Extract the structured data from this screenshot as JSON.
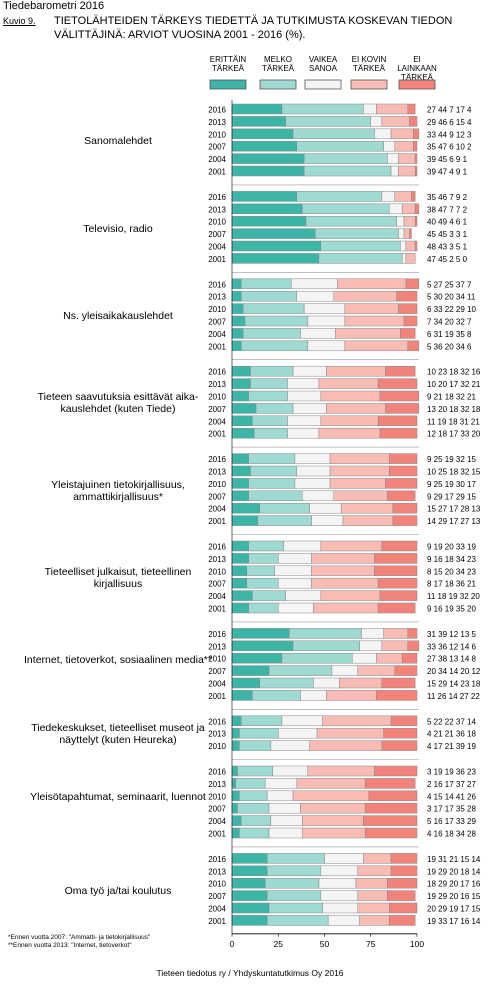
{
  "header": {
    "top_title": "Tiedebarometri 2016",
    "figure_label": "Kuvio 9.",
    "title": "TIETOLÄHTEIDEN TÄRKEYS TIEDETTÄ JA TUTKIMUSTA KOSKEVAN TIEDON VÄLITTÄJINÄ: ARVIOT VUOSINA 2001 - 2016 (%)."
  },
  "footnotes": [
    "*Ennen vuotta 2007: \"Ammatti- ja tietokirjallisuus\"",
    "**Ennen vuotta 2013: \"Internet, tietoverkot\""
  ],
  "source": "Tieteen tiedotus ry / Yhdyskuntatutkimus Oy 2016",
  "chart_data": {
    "type": "bar",
    "stacked": true,
    "orientation": "horizontal",
    "xlim": [
      0,
      100
    ],
    "x_ticks": [
      "0",
      "25",
      "50",
      "75",
      "100"
    ],
    "series": [
      {
        "name": "ERITTÄIN TÄRKEÄ",
        "color": "#3db5a6"
      },
      {
        "name": "MELKO TÄRKEÄ",
        "color": "#9ed9d2"
      },
      {
        "name": "VAIKEA SANOA",
        "color": "#f4f4f4"
      },
      {
        "name": "EI KOVIN TÄRKEÄ",
        "color": "#f9bcb4"
      },
      {
        "name": "EI LAINKAAN TÄRKEÄ",
        "color": "#f2837b"
      }
    ],
    "groups": [
      {
        "label": "Sanomalehdet",
        "rows": [
          {
            "year": "2016",
            "values": [
              27,
              44,
              7,
              17,
              4
            ]
          },
          {
            "year": "2013",
            "values": [
              29,
              46,
              6,
              15,
              4
            ]
          },
          {
            "year": "2010",
            "values": [
              33,
              44,
              9,
              12,
              3
            ]
          },
          {
            "year": "2007",
            "values": [
              35,
              47,
              6,
              10,
              2
            ]
          },
          {
            "year": "2004",
            "values": [
              39,
              45,
              6,
              9,
              1
            ]
          },
          {
            "year": "2001",
            "values": [
              39,
              47,
              4,
              9,
              1
            ]
          }
        ]
      },
      {
        "label": "Televisio, radio",
        "rows": [
          {
            "year": "2016",
            "values": [
              35,
              46,
              7,
              9,
              2
            ]
          },
          {
            "year": "2013",
            "values": [
              38,
              47,
              7,
              7,
              2
            ]
          },
          {
            "year": "2010",
            "values": [
              40,
              49,
              4,
              6,
              1
            ]
          },
          {
            "year": "2007",
            "values": [
              45,
              45,
              3,
              3,
              1
            ]
          },
          {
            "year": "2004",
            "values": [
              48,
              43,
              3,
              5,
              1
            ]
          },
          {
            "year": "2001",
            "values": [
              47,
              45,
              2,
              5,
              0
            ]
          }
        ]
      },
      {
        "label": "Ns. yleisaikakauslehdet",
        "rows": [
          {
            "year": "2016",
            "values": [
              5,
              27,
              25,
              37,
              7
            ]
          },
          {
            "year": "2013",
            "values": [
              5,
              30,
              20,
              34,
              11
            ]
          },
          {
            "year": "2010",
            "values": [
              6,
              33,
              22,
              29,
              10
            ]
          },
          {
            "year": "2007",
            "values": [
              7,
              34,
              20,
              32,
              7
            ]
          },
          {
            "year": "2004",
            "values": [
              6,
              31,
              19,
              35,
              8
            ]
          },
          {
            "year": "2001",
            "values": [
              5,
              36,
              20,
              34,
              6
            ]
          }
        ]
      },
      {
        "label": "Tieteen saavutuksia esittävät aika-kauslehdet (kuten Tiede)",
        "rows": [
          {
            "year": "2016",
            "values": [
              10,
              23,
              18,
              32,
              16
            ]
          },
          {
            "year": "2013",
            "values": [
              10,
              20,
              17,
              32,
              21
            ]
          },
          {
            "year": "2010",
            "values": [
              9,
              21,
              18,
              32,
              21
            ]
          },
          {
            "year": "2007",
            "values": [
              13,
              20,
              18,
              32,
              18
            ]
          },
          {
            "year": "2004",
            "values": [
              11,
              19,
              18,
              31,
              21
            ]
          },
          {
            "year": "2001",
            "values": [
              12,
              18,
              17,
              33,
              20
            ]
          }
        ]
      },
      {
        "label": "Yleistajuinen tietokirjallisuus, ammattikirjallisuus*",
        "rows": [
          {
            "year": "2016",
            "values": [
              9,
              25,
              19,
              32,
              15
            ]
          },
          {
            "year": "2013",
            "values": [
              10,
              25,
              18,
              32,
              15
            ]
          },
          {
            "year": "2010",
            "values": [
              9,
              25,
              19,
              30,
              17
            ]
          },
          {
            "year": "2007",
            "values": [
              9,
              29,
              17,
              29,
              15
            ]
          },
          {
            "year": "2004",
            "values": [
              15,
              27,
              17,
              28,
              13
            ]
          },
          {
            "year": "2001",
            "values": [
              14,
              29,
              17,
              27,
              13
            ]
          }
        ]
      },
      {
        "label": "Tieteelliset julkaisut, tieteellinen kirjallisuus",
        "rows": [
          {
            "year": "2016",
            "values": [
              9,
              19,
              20,
              33,
              19
            ]
          },
          {
            "year": "2013",
            "values": [
              9,
              16,
              18,
              34,
              23
            ]
          },
          {
            "year": "2010",
            "values": [
              8,
              15,
              20,
              34,
              23
            ]
          },
          {
            "year": "2007",
            "values": [
              8,
              17,
              18,
              36,
              21
            ]
          },
          {
            "year": "2004",
            "values": [
              11,
              18,
              19,
              32,
              20
            ]
          },
          {
            "year": "2001",
            "values": [
              9,
              16,
              19,
              35,
              20
            ]
          }
        ]
      },
      {
        "label": "Internet, tietoverkot, sosiaalinen media**",
        "rows": [
          {
            "year": "2016",
            "values": [
              31,
              39,
              12,
              13,
              5
            ]
          },
          {
            "year": "2013",
            "values": [
              33,
              36,
              12,
              14,
              6
            ]
          },
          {
            "year": "2010",
            "values": [
              27,
              38,
              13,
              14,
              8
            ]
          },
          {
            "year": "2007",
            "values": [
              20,
              34,
              14,
              20,
              12
            ]
          },
          {
            "year": "2004",
            "values": [
              15,
              29,
              14,
              23,
              18
            ]
          },
          {
            "year": "2001",
            "values": [
              11,
              26,
              14,
              27,
              22
            ]
          }
        ]
      },
      {
        "label": "Tiedekeskukset, tieteelliset museot ja näyttelyt (kuten Heureka)",
        "rows": [
          {
            "year": "2016",
            "values": [
              5,
              22,
              22,
              37,
              14
            ]
          },
          {
            "year": "2013",
            "values": [
              4,
              21,
              21,
              36,
              18
            ]
          },
          {
            "year": "2010",
            "values": [
              4,
              17,
              21,
              39,
              19
            ]
          }
        ]
      },
      {
        "label": "Yleisötapahtumat, seminaarit, luennot",
        "rows": [
          {
            "year": "2016",
            "values": [
              3,
              19,
              19,
              36,
              23
            ]
          },
          {
            "year": "2013",
            "values": [
              2,
              16,
              17,
              37,
              27
            ]
          },
          {
            "year": "2010",
            "values": [
              4,
              15,
              14,
              41,
              26
            ]
          },
          {
            "year": "2007",
            "values": [
              3,
              17,
              17,
              35,
              28
            ]
          },
          {
            "year": "2004",
            "values": [
              5,
              16,
              17,
              33,
              29
            ]
          },
          {
            "year": "2001",
            "values": [
              4,
              16,
              18,
              34,
              28
            ]
          }
        ]
      },
      {
        "label": "Oma työ ja/tai koulutus",
        "rows": [
          {
            "year": "2016",
            "values": [
              19,
              31,
              21,
              15,
              14
            ]
          },
          {
            "year": "2013",
            "values": [
              19,
              29,
              20,
              18,
              14
            ]
          },
          {
            "year": "2010",
            "values": [
              18,
              29,
              20,
              17,
              16
            ]
          },
          {
            "year": "2007",
            "values": [
              19,
              29,
              20,
              16,
              15
            ]
          },
          {
            "year": "2004",
            "values": [
              20,
              29,
              19,
              17,
              15
            ]
          },
          {
            "year": "2001",
            "values": [
              19,
              33,
              17,
              16,
              14
            ]
          }
        ]
      }
    ]
  }
}
